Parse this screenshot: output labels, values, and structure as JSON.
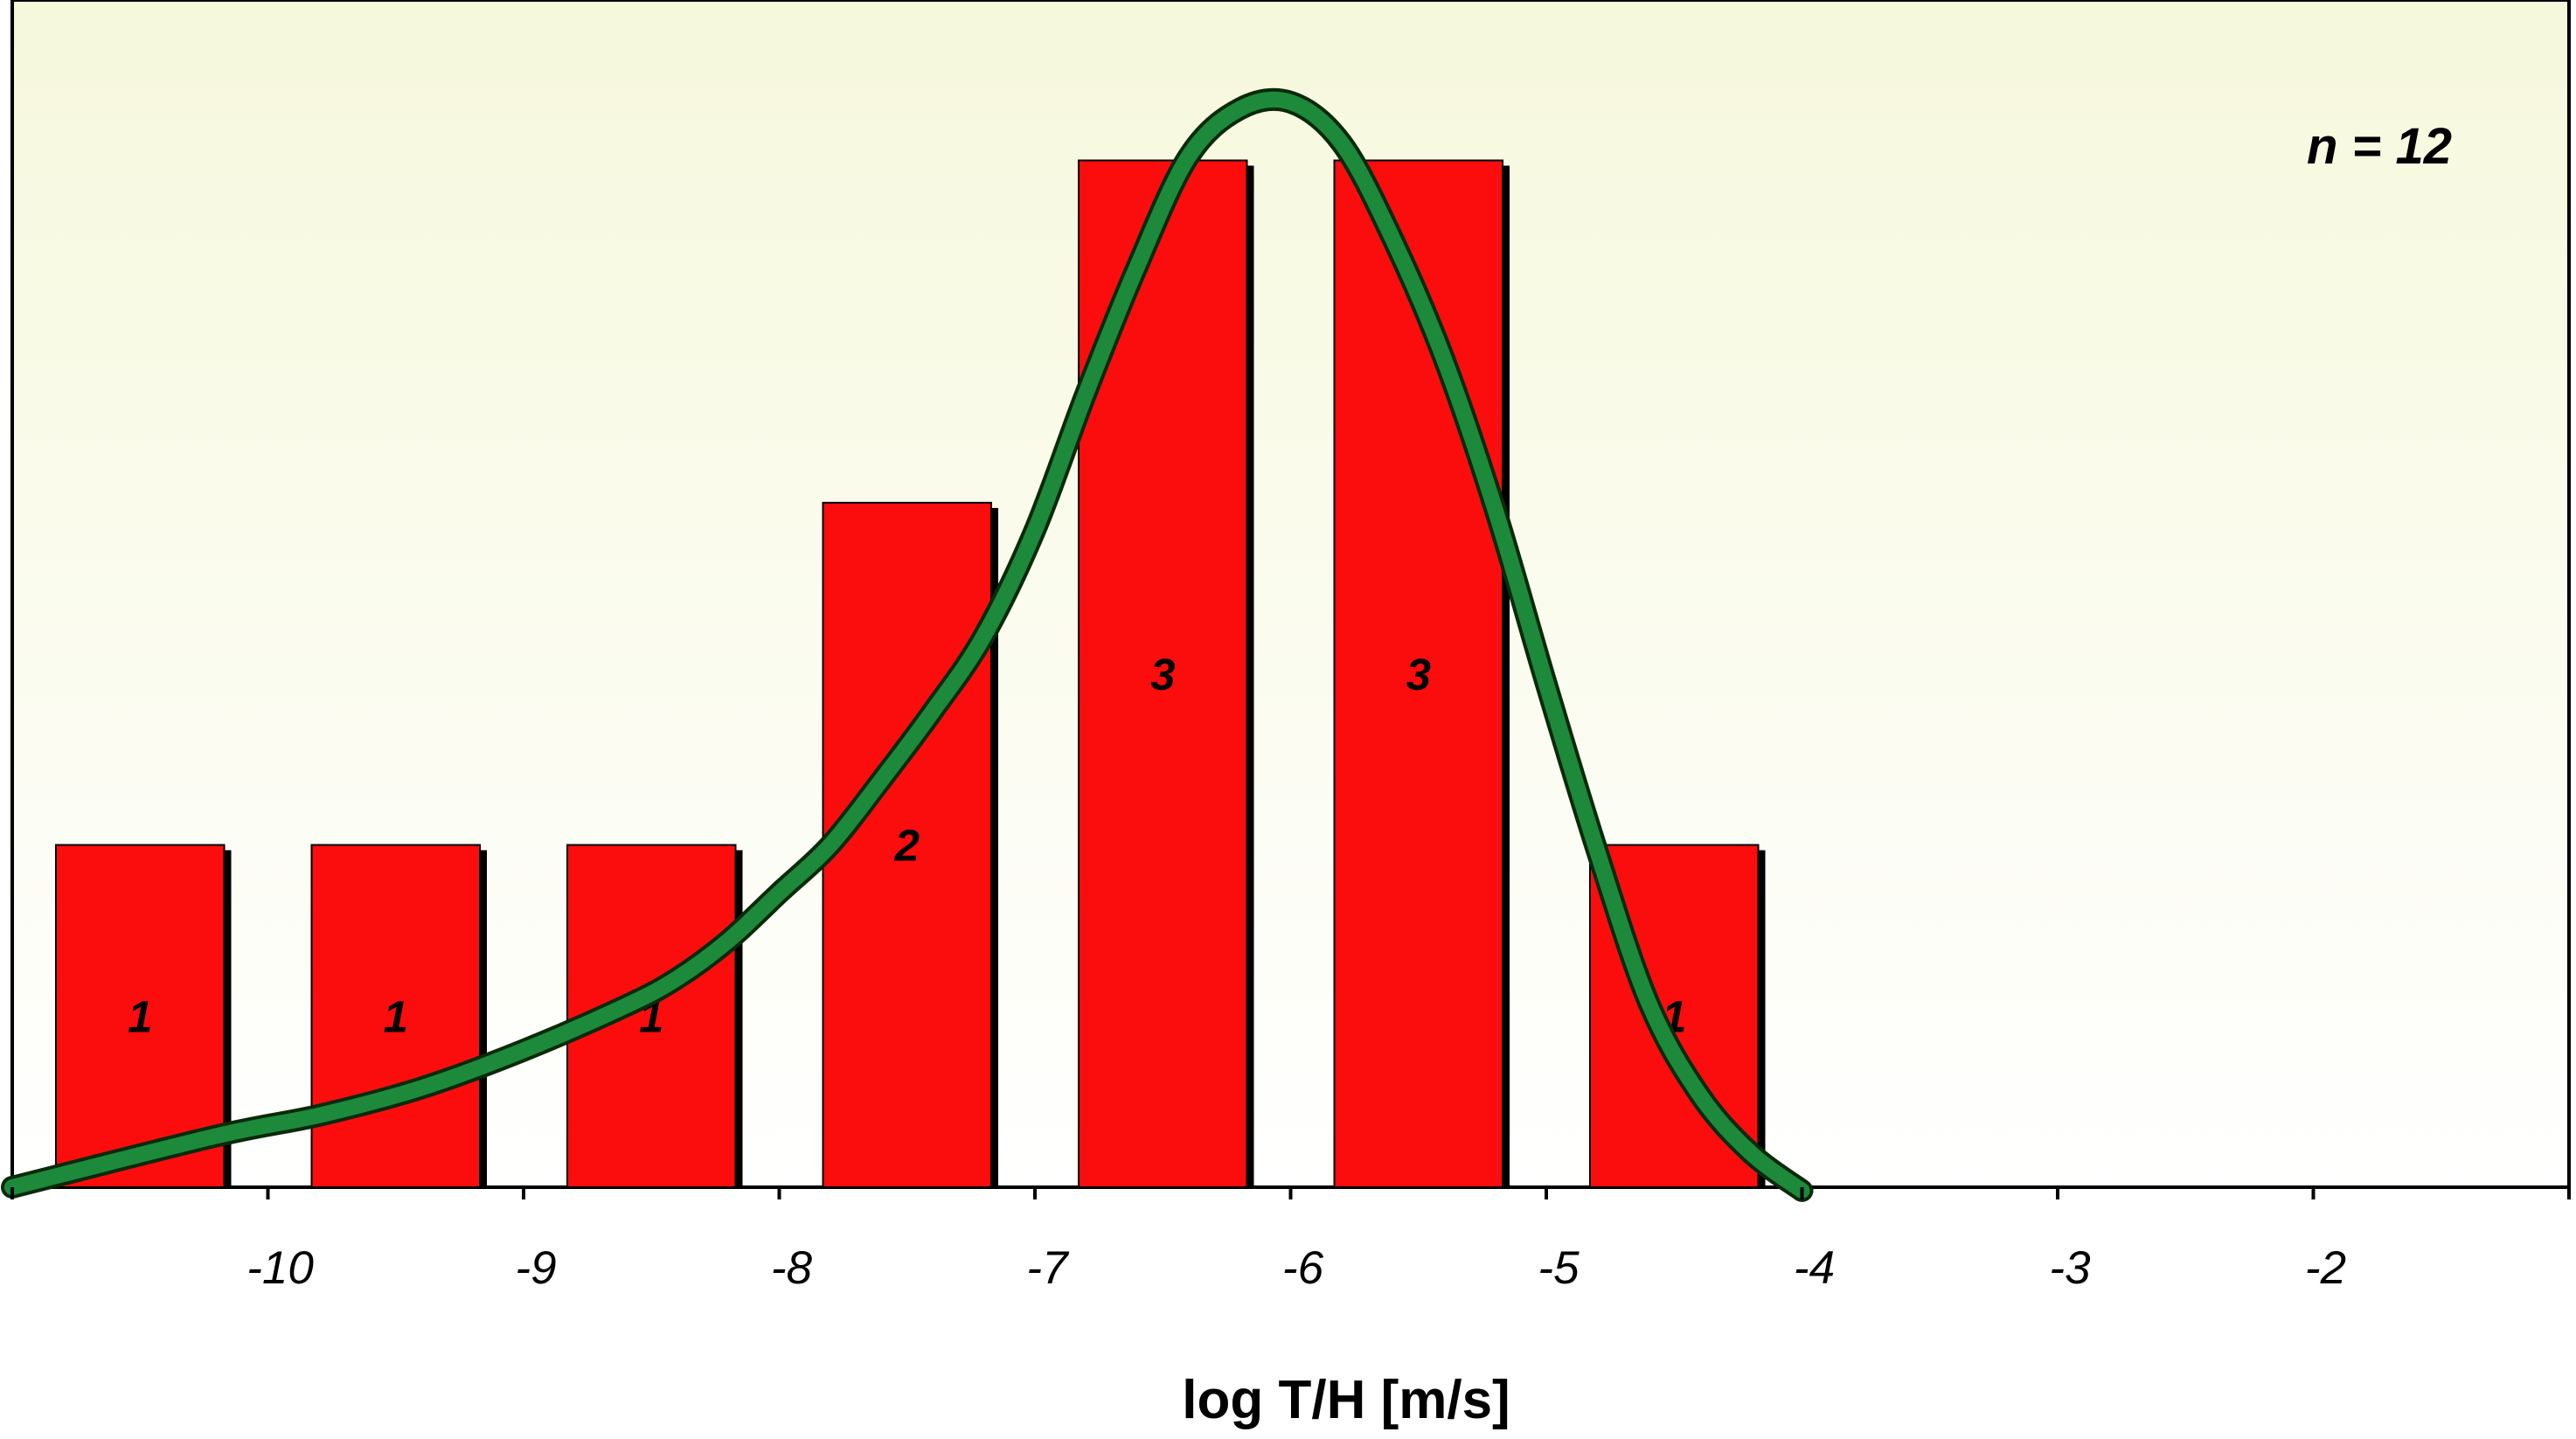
{
  "chart_data": {
    "type": "bar",
    "title": "",
    "xlabel": "log T/H [m/s]",
    "ylabel": "",
    "annotation": "n = 12",
    "xlim": [
      -11,
      -1
    ],
    "ylim": [
      0,
      3.3
    ],
    "x_ticks": [
      -10,
      -9,
      -8,
      -7,
      -6,
      -5,
      -4,
      -3,
      -2
    ],
    "bars": [
      {
        "x0": -11,
        "x1": -10,
        "value": 1
      },
      {
        "x0": -10,
        "x1": -9,
        "value": 1
      },
      {
        "x0": -9,
        "x1": -8,
        "value": 1
      },
      {
        "x0": -8,
        "x1": -7,
        "value": 2
      },
      {
        "x0": -7,
        "x1": -6,
        "value": 3
      },
      {
        "x0": -6,
        "x1": -5,
        "value": 3
      },
      {
        "x0": -5,
        "x1": -4,
        "value": 1
      }
    ],
    "curve": [
      [
        -11,
        0
      ],
      [
        -10.2,
        0.15
      ],
      [
        -9.8,
        0.21
      ],
      [
        -9.4,
        0.29
      ],
      [
        -9,
        0.4
      ],
      [
        -8.6,
        0.53
      ],
      [
        -8.4,
        0.61
      ],
      [
        -8.2,
        0.72
      ],
      [
        -8,
        0.86
      ],
      [
        -7.8,
        1.0
      ],
      [
        -7.6,
        1.19
      ],
      [
        -7.4,
        1.39
      ],
      [
        -7.2,
        1.61
      ],
      [
        -7,
        1.92
      ],
      [
        -6.8,
        2.32
      ],
      [
        -6.6,
        2.69
      ],
      [
        -6.4,
        3.01
      ],
      [
        -6.2,
        3.15
      ],
      [
        -6.0,
        3.17
      ],
      [
        -5.8,
        3.05
      ],
      [
        -5.6,
        2.77
      ],
      [
        -5.4,
        2.42
      ],
      [
        -5.2,
        1.98
      ],
      [
        -5.0,
        1.47
      ],
      [
        -4.8,
        0.98
      ],
      [
        -4.6,
        0.54
      ],
      [
        -4.4,
        0.27
      ],
      [
        -4.2,
        0.1
      ],
      [
        -4.0,
        -0.01
      ]
    ],
    "grid": false,
    "legend": "none",
    "colors": {
      "bar_fill": "#fc0d0d",
      "bar_shadow": "#000000",
      "curve_fill": "#1c8a3a",
      "curve_outline": "#0a2a0a",
      "plot_bg_top": "#f6f8dc",
      "plot_bg_bottom": "#ffffff"
    }
  }
}
